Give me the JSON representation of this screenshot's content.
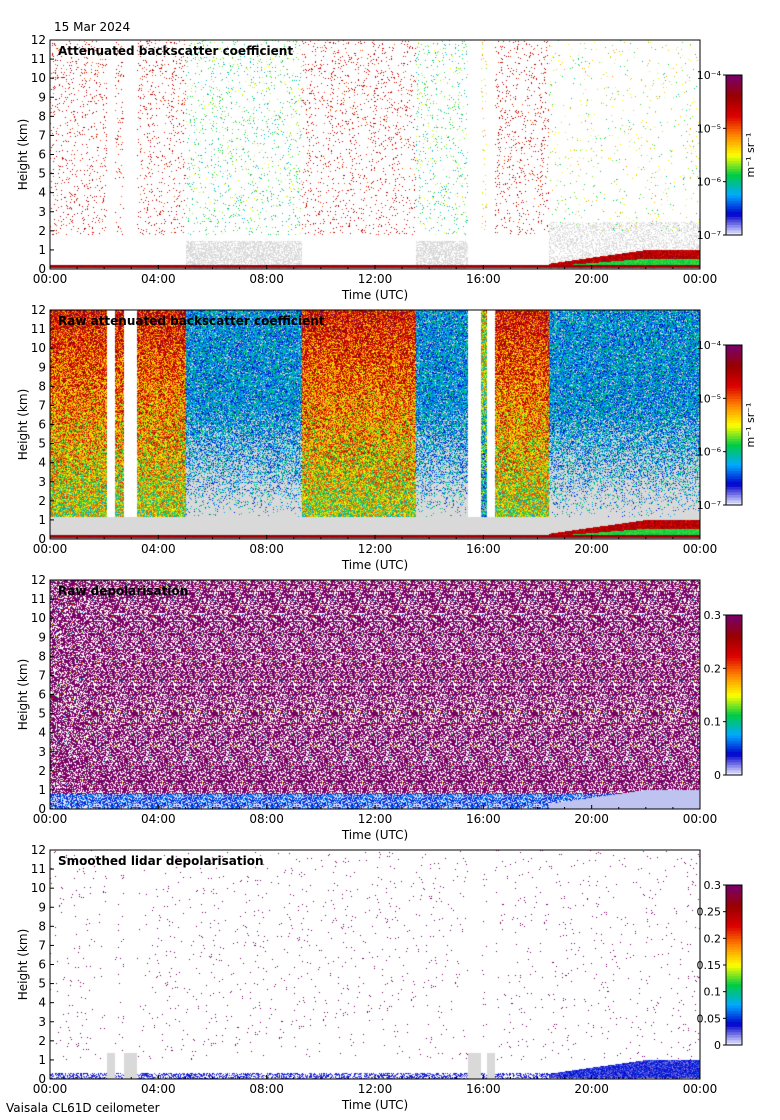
{
  "date": "15 Mar 2024",
  "footer": "Vaisala CL61D ceilometer",
  "colors": {
    "rainbow": [
      "#e6e6ff",
      "#0000cc",
      "#00aaff",
      "#00cc44",
      "#ffff00",
      "#ff8800",
      "#dd0000",
      "#990000",
      "#7a0066"
    ],
    "nodata": "#d9d9d9",
    "background": "#ffffff"
  },
  "chart_data": [
    {
      "type": "heatmap",
      "title": "Attenuated backscatter coefficient",
      "xlabel": "Time (UTC)",
      "ylabel": "Height (km)",
      "xticks": [
        "00:00",
        "04:00",
        "08:00",
        "12:00",
        "16:00",
        "20:00",
        "00:00"
      ],
      "xlim": [
        0,
        24
      ],
      "yticks": [
        "0",
        "1",
        "2",
        "3",
        "4",
        "5",
        "6",
        "7",
        "8",
        "9",
        "10",
        "11",
        "12"
      ],
      "ylim": [
        0,
        12
      ],
      "colorbar": {
        "scale": "log",
        "unit": "m⁻¹ sr⁻¹",
        "ticks": [
          {
            "value": -7,
            "label": "10⁻⁷"
          },
          {
            "value": -6,
            "label": "10⁻⁶"
          },
          {
            "value": -5,
            "label": "10⁻⁵"
          },
          {
            "value": -4,
            "label": "10⁻⁴"
          }
        ],
        "range": [
          -7,
          -4
        ]
      },
      "scene": {
        "style": "sparse",
        "noise_cap_km": 1.2,
        "lowcloud_band_km": 0.25
      }
    },
    {
      "type": "heatmap",
      "title": "Raw attenuated backscatter coefficient",
      "xlabel": "Time (UTC)",
      "ylabel": "Height (km)",
      "xticks": [
        "00:00",
        "04:00",
        "08:00",
        "12:00",
        "16:00",
        "20:00",
        "00:00"
      ],
      "xlim": [
        0,
        24
      ],
      "yticks": [
        "0",
        "1",
        "2",
        "3",
        "4",
        "5",
        "6",
        "7",
        "8",
        "9",
        "10",
        "11",
        "12"
      ],
      "ylim": [
        0,
        12
      ],
      "colorbar": {
        "scale": "log",
        "unit": "m⁻¹ sr⁻¹",
        "ticks": [
          {
            "value": -7,
            "label": "10⁻⁷"
          },
          {
            "value": -6,
            "label": "10⁻⁶"
          },
          {
            "value": -5,
            "label": "10⁻⁵"
          },
          {
            "value": -4,
            "label": "10⁻⁴"
          }
        ],
        "range": [
          -7,
          -4
        ]
      },
      "scene": {
        "style": "dense",
        "noise_cap_km": 1.2,
        "lowcloud_band_km": 0.25
      }
    },
    {
      "type": "heatmap",
      "title": "Raw depolarisation",
      "xlabel": "Time (UTC)",
      "ylabel": "Height (km)",
      "xticks": [
        "00:00",
        "04:00",
        "08:00",
        "12:00",
        "16:00",
        "20:00",
        "00:00"
      ],
      "xlim": [
        0,
        24
      ],
      "yticks": [
        "0",
        "1",
        "2",
        "3",
        "4",
        "5",
        "6",
        "7",
        "8",
        "9",
        "10",
        "11",
        "12"
      ],
      "ylim": [
        0,
        12
      ],
      "colorbar": {
        "scale": "linear",
        "unit": "",
        "ticks": [
          {
            "value": 0,
            "label": "0"
          },
          {
            "value": 0.1,
            "label": "0.1"
          },
          {
            "value": 0.2,
            "label": "0.2"
          },
          {
            "value": 0.3,
            "label": "0.3"
          }
        ],
        "range": [
          0,
          0.3
        ]
      },
      "scene": {
        "style": "noise_purple",
        "noise_cap_km": 0.8
      }
    },
    {
      "type": "heatmap",
      "title": "Smoothed lidar depolarisation",
      "xlabel": "Time (UTC)",
      "ylabel": "Height (km)",
      "xticks": [
        "00:00",
        "04:00",
        "08:00",
        "12:00",
        "16:00",
        "20:00",
        "00:00"
      ],
      "xlim": [
        0,
        24
      ],
      "yticks": [
        "0",
        "1",
        "2",
        "3",
        "4",
        "5",
        "6",
        "7",
        "8",
        "9",
        "10",
        "11",
        "12"
      ],
      "ylim": [
        0,
        12
      ],
      "colorbar": {
        "scale": "linear",
        "unit": "",
        "ticks": [
          {
            "value": 0,
            "label": "0"
          },
          {
            "value": 0.05,
            "label": "0.05"
          },
          {
            "value": 0.1,
            "label": "0.1"
          },
          {
            "value": 0.15,
            "label": "0.15"
          },
          {
            "value": 0.2,
            "label": "0.2"
          },
          {
            "value": 0.25,
            "label": "0.25"
          },
          {
            "value": 0.3,
            "label": "0.3"
          }
        ],
        "range": [
          0,
          0.3
        ]
      },
      "scene": {
        "style": "sparse_purple",
        "noise_cap_km": 1.0
      }
    }
  ],
  "timeline": {
    "segments": [
      {
        "start": 0.0,
        "end": 2.1,
        "level": "high"
      },
      {
        "start": 2.1,
        "end": 2.4,
        "level": "gap"
      },
      {
        "start": 2.4,
        "end": 2.7,
        "level": "high"
      },
      {
        "start": 2.7,
        "end": 3.2,
        "level": "gap"
      },
      {
        "start": 3.2,
        "end": 5.0,
        "level": "high"
      },
      {
        "start": 5.0,
        "end": 9.3,
        "level": "low"
      },
      {
        "start": 9.3,
        "end": 13.5,
        "level": "high"
      },
      {
        "start": 13.5,
        "end": 15.4,
        "level": "low"
      },
      {
        "start": 15.4,
        "end": 15.9,
        "level": "gap"
      },
      {
        "start": 15.9,
        "end": 16.1,
        "level": "mid"
      },
      {
        "start": 16.1,
        "end": 16.4,
        "level": "gap"
      },
      {
        "start": 16.4,
        "end": 18.4,
        "level": "high"
      },
      {
        "start": 18.4,
        "end": 24.0,
        "level": "night"
      }
    ],
    "aerosol_layer": {
      "start_hour": 18.4,
      "end_hour": 24.0,
      "base_km": 0.1,
      "top_km_start": 0.3,
      "top_km_end": 1.0
    }
  }
}
